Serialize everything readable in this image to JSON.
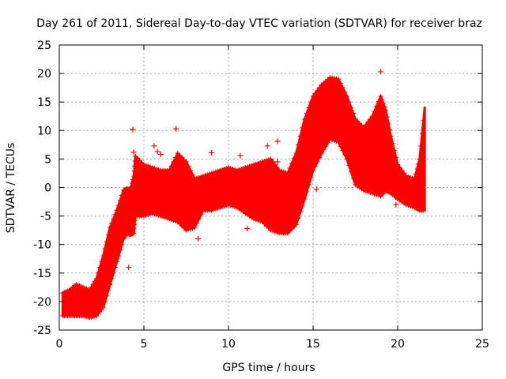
{
  "chart_data": {
    "type": "scatter",
    "title": "Day 261 of 2011, Sidereal Day-to-day VTEC variation (SDTVAR) for receiver braz",
    "xlabel": "GPS time / hours",
    "ylabel": "SDTVAR / TECUs",
    "xlim": [
      0,
      25
    ],
    "ylim": [
      -25,
      25
    ],
    "xticks": [
      0,
      5,
      10,
      15,
      20,
      25
    ],
    "yticks": [
      -25,
      -20,
      -15,
      -10,
      -5,
      0,
      5,
      10,
      15,
      20,
      25
    ],
    "xtick_labels": [
      "0",
      "5",
      "10",
      "15",
      "20",
      "25"
    ],
    "ytick_labels": [
      "-25",
      "-20",
      "-15",
      "-10",
      "-5",
      "0",
      "5",
      "10",
      "15",
      "20",
      "25"
    ],
    "grid": true,
    "marker": "+",
    "color": "#ff0000",
    "series": [
      {
        "name": "SDTVAR",
        "envelope": {
          "x": [
            0.2,
            0.6,
            1.0,
            1.4,
            1.8,
            2.2,
            2.6,
            3.0,
            3.4,
            3.8,
            4.0,
            4.2,
            4.4,
            4.5,
            5.0,
            5.5,
            6.0,
            6.5,
            7.0,
            7.5,
            8.0,
            8.5,
            9.0,
            9.5,
            10.0,
            10.5,
            11.0,
            11.5,
            12.0,
            12.5,
            13.0,
            13.5,
            14.0,
            14.5,
            15.0,
            15.5,
            16.0,
            16.5,
            17.0,
            17.5,
            18.0,
            18.5,
            19.0,
            19.3,
            19.6,
            20.0,
            20.5,
            21.0,
            21.3,
            21.6
          ],
          "upper": [
            -18.5,
            -18.0,
            -17.0,
            -17.5,
            -18.0,
            -16.0,
            -12.0,
            -7.0,
            -4.0,
            -0.5,
            -0.2,
            -0.5,
            2.0,
            5.5,
            4.0,
            3.5,
            3.0,
            3.0,
            6.0,
            4.5,
            1.5,
            2.0,
            2.5,
            3.0,
            3.5,
            3.0,
            3.5,
            4.0,
            4.5,
            5.0,
            3.0,
            2.5,
            6.0,
            12.0,
            16.0,
            18.0,
            19.3,
            19.0,
            16.0,
            12.0,
            10.5,
            12.5,
            16.0,
            13.5,
            9.0,
            4.0,
            2.0,
            1.5,
            5.0,
            14.0
          ],
          "lower": [
            -22.5,
            -22.5,
            -22.5,
            -22.5,
            -22.8,
            -22.5,
            -21.0,
            -17.0,
            -13.0,
            -9.0,
            -8.0,
            -8.3,
            -8.0,
            -5.0,
            -5.0,
            -4.5,
            -5.0,
            -5.5,
            -6.0,
            -7.5,
            -7.0,
            -4.0,
            -4.0,
            -3.5,
            -3.0,
            -3.5,
            -4.5,
            -5.5,
            -6.0,
            -7.5,
            -8.0,
            -8.0,
            -6.5,
            -2.0,
            3.0,
            6.0,
            8.5,
            8.0,
            5.0,
            0.5,
            -0.5,
            -1.0,
            -1.5,
            -0.5,
            -1.0,
            -2.0,
            -3.0,
            -3.5,
            -4.0,
            -4.0
          ]
        },
        "outliers": [
          {
            "x": 4.35,
            "y": 10.2
          },
          {
            "x": 4.4,
            "y": 6.2
          },
          {
            "x": 5.6,
            "y": 7.3
          },
          {
            "x": 5.8,
            "y": 6.3
          },
          {
            "x": 6.0,
            "y": 5.8
          },
          {
            "x": 6.9,
            "y": 10.3
          },
          {
            "x": 8.2,
            "y": -9.0
          },
          {
            "x": 9.0,
            "y": 6.1
          },
          {
            "x": 10.7,
            "y": 5.6
          },
          {
            "x": 12.3,
            "y": 7.3
          },
          {
            "x": 12.9,
            "y": 8.1
          },
          {
            "x": 12.9,
            "y": 4.5
          },
          {
            "x": 15.2,
            "y": -0.3
          },
          {
            "x": 19.0,
            "y": 20.3
          },
          {
            "x": 19.9,
            "y": -3.0
          },
          {
            "x": 4.1,
            "y": -14.0
          },
          {
            "x": 11.1,
            "y": -7.2
          }
        ]
      }
    ]
  }
}
